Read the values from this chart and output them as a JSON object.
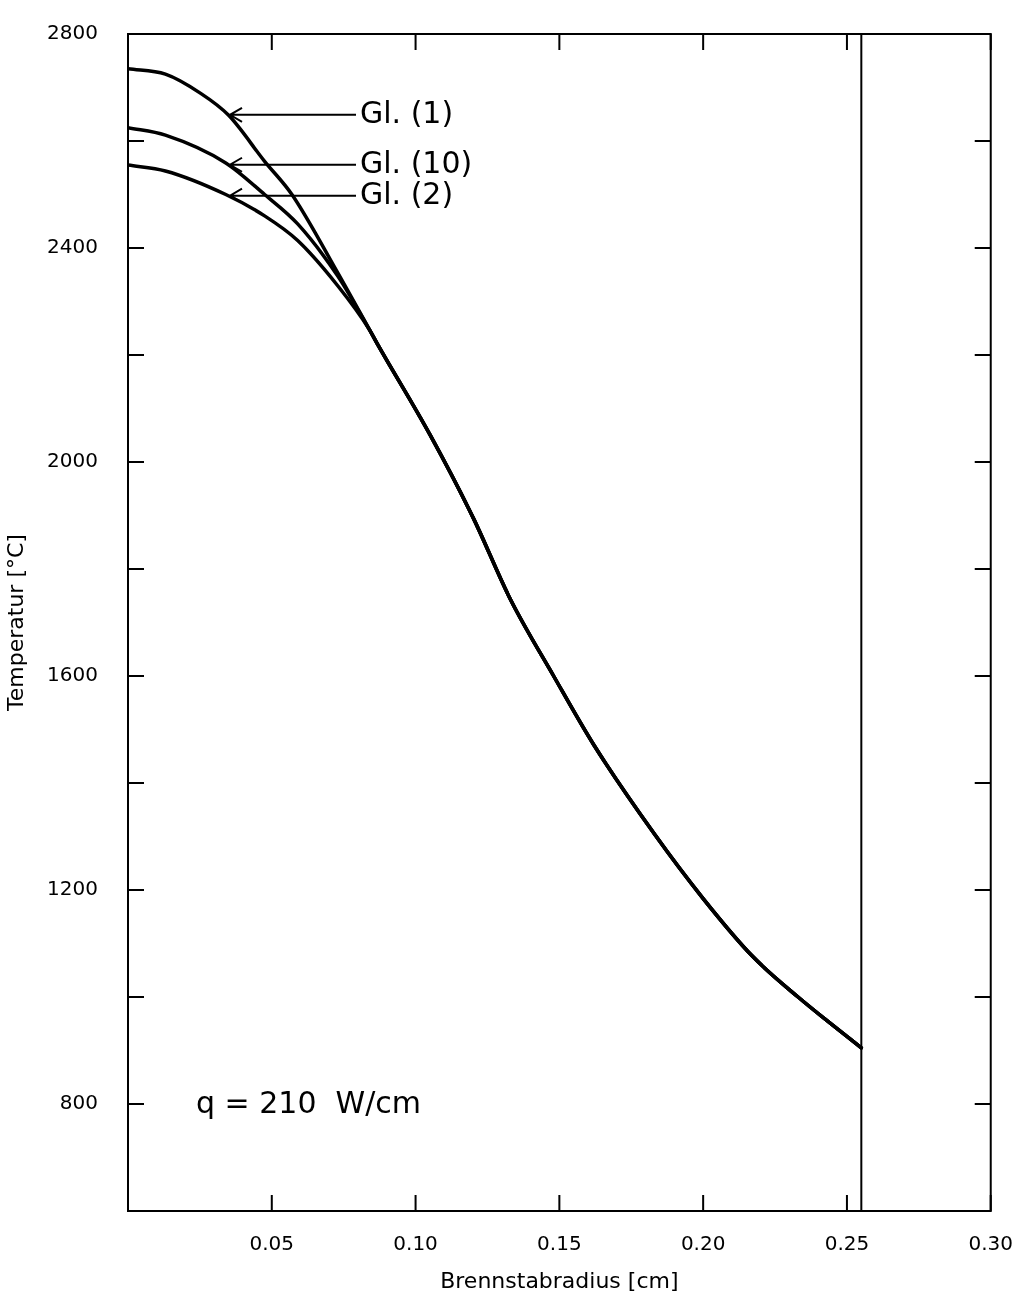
{
  "chart_data": {
    "type": "line",
    "xlabel": "Brennstabradius [cm]",
    "ylabel": "Temperatur [°C]",
    "xlim": [
      0,
      0.3
    ],
    "xticks": [
      {
        "value": 0.05,
        "label": "0.05"
      },
      {
        "value": 0.1,
        "label": "0.10"
      },
      {
        "value": 0.15,
        "label": "0.15"
      },
      {
        "value": 0.2,
        "label": "0.20"
      },
      {
        "value": 0.25,
        "label": "0.25"
      },
      {
        "value": 0.3,
        "label": "0.30"
      }
    ],
    "ylim": [
      600,
      2800
    ],
    "yticks": [
      {
        "value": 600,
        "label": null
      },
      800,
      {
        "value": 1000,
        "label": null
      },
      1200,
      {
        "value": 1400,
        "label": null
      },
      1600,
      {
        "value": 1800,
        "label": null
      },
      2000,
      {
        "value": 2200,
        "label": null
      },
      2400,
      {
        "value": 2600,
        "label": null
      },
      2800
    ],
    "grid": false,
    "legend": "top left",
    "marker": "none",
    "line_style": "solid",
    "series": [
      {
        "name": "Gl. (1)",
        "color": "#000000",
        "x": [
          0,
          0.013,
          0.025,
          0.035,
          0.0475,
          0.057,
          0.073,
          0.084,
          0.087,
          0.105,
          0.12,
          0.133,
          0.148,
          0.162,
          0.183,
          0.2,
          0.217,
          0.233,
          0.255
        ],
        "values": [
          2735,
          2725,
          2690,
          2648,
          2562,
          2500,
          2353,
          2247,
          2218,
          2051,
          1896,
          1743,
          1600,
          1471,
          1305,
          1184,
          1077,
          1000,
          905
        ]
      },
      {
        "name": "Gl. (10)",
        "color": "#000000",
        "x": [
          0,
          0.013,
          0.034,
          0.0475,
          0.059,
          0.073,
          0.084,
          0.087,
          0.105,
          0.12,
          0.133,
          0.148,
          0.162,
          0.183,
          0.2,
          0.217,
          0.233,
          0.255
        ],
        "values": [
          2625,
          2611,
          2559,
          2500,
          2445,
          2347,
          2247,
          2218,
          2051,
          1896,
          1743,
          1600,
          1471,
          1305,
          1184,
          1077,
          1000,
          905
        ]
      },
      {
        "name": "Gl. (2)",
        "color": "#000000",
        "x": [
          0,
          0.013,
          0.034,
          0.0475,
          0.059,
          0.073,
          0.084,
          0.087,
          0.105,
          0.12,
          0.133,
          0.148,
          0.162,
          0.183,
          0.2,
          0.217,
          0.233,
          0.255
        ],
        "values": [
          2555,
          2544,
          2500,
          2460,
          2414,
          2329,
          2247,
          2218,
          2051,
          1896,
          1743,
          1600,
          1471,
          1305,
          1184,
          1077,
          1000,
          905
        ]
      }
    ],
    "ref_lines": [
      {
        "axis": "x",
        "value": 0.255,
        "color": "#000000",
        "line_style": "solid"
      }
    ],
    "annotations": [
      "q = 210  W/cm"
    ]
  }
}
